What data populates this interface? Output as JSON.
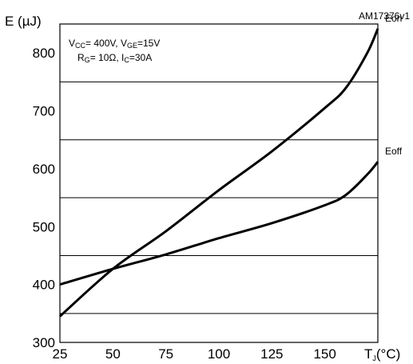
{
  "chart_data": {
    "type": "line",
    "figure_id": "AM17376v1",
    "ylabel": "E (µJ)",
    "xlabel_main": "T",
    "xlabel_sub": "J",
    "xlabel_unit": "(°C)",
    "xlim": [
      25,
      175
    ],
    "ylim": [
      300,
      850
    ],
    "x_ticks": [
      25,
      50,
      75,
      100,
      125,
      150
    ],
    "y_ticks": [
      300,
      400,
      500,
      600,
      700,
      800
    ],
    "grid_lines_y": [
      350,
      450,
      550,
      650,
      750,
      850
    ],
    "conditions": {
      "line1": [
        {
          "t": "V",
          "s": ""
        },
        {
          "t": "CC",
          "s": "sub"
        },
        {
          "t": "= 400V, V",
          "s": ""
        },
        {
          "t": "GE",
          "s": "sub"
        },
        {
          "t": "=15V",
          "s": ""
        }
      ],
      "line2": [
        {
          "t": "R",
          "s": ""
        },
        {
          "t": "G",
          "s": "sub"
        },
        {
          "t": "= 10Ω, I",
          "s": ""
        },
        {
          "t": "C",
          "s": "sub"
        },
        {
          "t": "=30A",
          "s": ""
        }
      ]
    },
    "series": [
      {
        "name": "Eon",
        "x": [
          25,
          50,
          75,
          100,
          125,
          150,
          160,
          170,
          175
        ],
        "y": [
          345,
          427,
          492,
          563,
          630,
          705,
          740,
          800,
          842
        ]
      },
      {
        "name": "Eoff",
        "x": [
          25,
          50,
          75,
          100,
          125,
          150,
          160,
          170,
          175
        ],
        "y": [
          400,
          427,
          452,
          480,
          506,
          537,
          555,
          590,
          612
        ]
      }
    ],
    "colors": {
      "line": "#000000",
      "grid": "#000000",
      "background": "#ffffff"
    }
  }
}
